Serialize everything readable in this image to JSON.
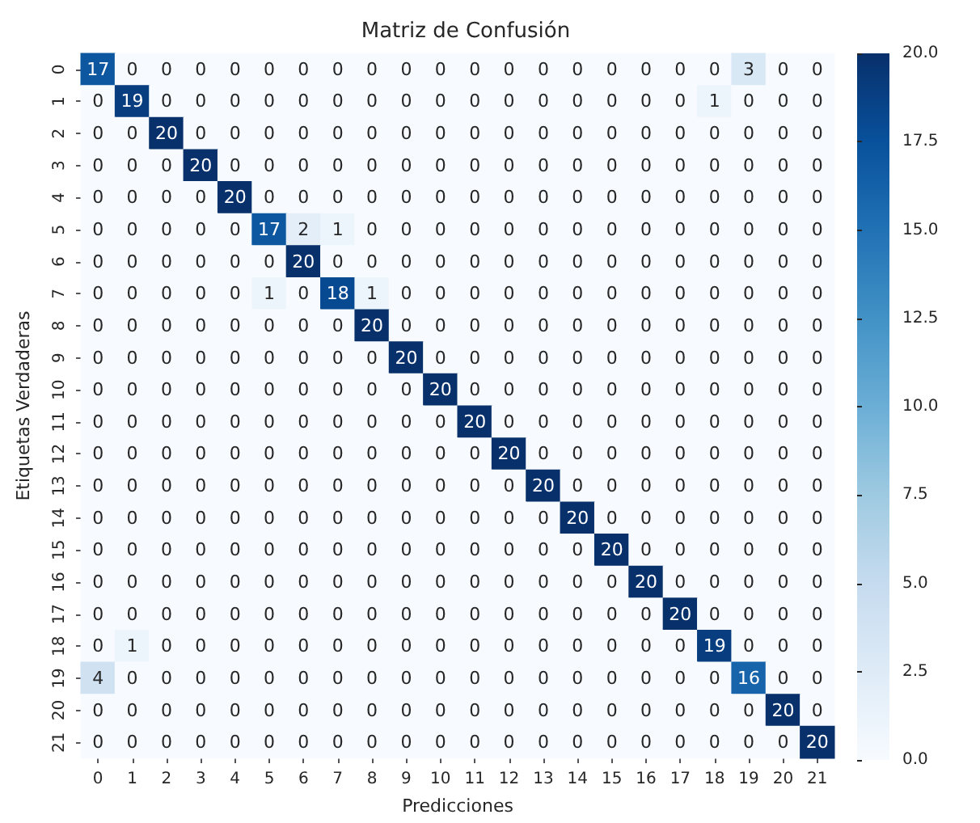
{
  "chart_data": {
    "type": "heatmap",
    "title": "Matriz de Confusión",
    "xlabel": "Predicciones",
    "ylabel": "Etiquetas Verdaderas",
    "categories": [
      "0",
      "1",
      "2",
      "3",
      "4",
      "5",
      "6",
      "7",
      "8",
      "9",
      "10",
      "11",
      "12",
      "13",
      "14",
      "15",
      "16",
      "17",
      "18",
      "19",
      "20",
      "21"
    ],
    "y_categories": [
      "0",
      "1",
      "2",
      "3",
      "4",
      "5",
      "6",
      "7",
      "8",
      "9",
      "10",
      "11",
      "12",
      "13",
      "14",
      "15",
      "16",
      "17",
      "18",
      "19",
      "20",
      "21"
    ],
    "cells": [
      [
        17,
        0,
        0,
        0,
        0,
        0,
        0,
        0,
        0,
        0,
        0,
        0,
        0,
        0,
        0,
        0,
        0,
        0,
        0,
        3,
        0,
        0
      ],
      [
        0,
        19,
        0,
        0,
        0,
        0,
        0,
        0,
        0,
        0,
        0,
        0,
        0,
        0,
        0,
        0,
        0,
        0,
        1,
        0,
        0,
        0
      ],
      [
        0,
        0,
        20,
        0,
        0,
        0,
        0,
        0,
        0,
        0,
        0,
        0,
        0,
        0,
        0,
        0,
        0,
        0,
        0,
        0,
        0,
        0
      ],
      [
        0,
        0,
        0,
        20,
        0,
        0,
        0,
        0,
        0,
        0,
        0,
        0,
        0,
        0,
        0,
        0,
        0,
        0,
        0,
        0,
        0,
        0
      ],
      [
        0,
        0,
        0,
        0,
        20,
        0,
        0,
        0,
        0,
        0,
        0,
        0,
        0,
        0,
        0,
        0,
        0,
        0,
        0,
        0,
        0,
        0
      ],
      [
        0,
        0,
        0,
        0,
        0,
        17,
        2,
        1,
        0,
        0,
        0,
        0,
        0,
        0,
        0,
        0,
        0,
        0,
        0,
        0,
        0,
        0
      ],
      [
        0,
        0,
        0,
        0,
        0,
        0,
        20,
        0,
        0,
        0,
        0,
        0,
        0,
        0,
        0,
        0,
        0,
        0,
        0,
        0,
        0,
        0
      ],
      [
        0,
        0,
        0,
        0,
        0,
        1,
        0,
        18,
        1,
        0,
        0,
        0,
        0,
        0,
        0,
        0,
        0,
        0,
        0,
        0,
        0,
        0
      ],
      [
        0,
        0,
        0,
        0,
        0,
        0,
        0,
        0,
        20,
        0,
        0,
        0,
        0,
        0,
        0,
        0,
        0,
        0,
        0,
        0,
        0,
        0
      ],
      [
        0,
        0,
        0,
        0,
        0,
        0,
        0,
        0,
        0,
        20,
        0,
        0,
        0,
        0,
        0,
        0,
        0,
        0,
        0,
        0,
        0,
        0
      ],
      [
        0,
        0,
        0,
        0,
        0,
        0,
        0,
        0,
        0,
        0,
        20,
        0,
        0,
        0,
        0,
        0,
        0,
        0,
        0,
        0,
        0,
        0
      ],
      [
        0,
        0,
        0,
        0,
        0,
        0,
        0,
        0,
        0,
        0,
        0,
        20,
        0,
        0,
        0,
        0,
        0,
        0,
        0,
        0,
        0,
        0
      ],
      [
        0,
        0,
        0,
        0,
        0,
        0,
        0,
        0,
        0,
        0,
        0,
        0,
        20,
        0,
        0,
        0,
        0,
        0,
        0,
        0,
        0,
        0
      ],
      [
        0,
        0,
        0,
        0,
        0,
        0,
        0,
        0,
        0,
        0,
        0,
        0,
        0,
        20,
        0,
        0,
        0,
        0,
        0,
        0,
        0,
        0
      ],
      [
        0,
        0,
        0,
        0,
        0,
        0,
        0,
        0,
        0,
        0,
        0,
        0,
        0,
        0,
        20,
        0,
        0,
        0,
        0,
        0,
        0,
        0
      ],
      [
        0,
        0,
        0,
        0,
        0,
        0,
        0,
        0,
        0,
        0,
        0,
        0,
        0,
        0,
        0,
        20,
        0,
        0,
        0,
        0,
        0,
        0
      ],
      [
        0,
        0,
        0,
        0,
        0,
        0,
        0,
        0,
        0,
        0,
        0,
        0,
        0,
        0,
        0,
        0,
        20,
        0,
        0,
        0,
        0,
        0
      ],
      [
        0,
        0,
        0,
        0,
        0,
        0,
        0,
        0,
        0,
        0,
        0,
        0,
        0,
        0,
        0,
        0,
        0,
        20,
        0,
        0,
        0,
        0
      ],
      [
        0,
        1,
        0,
        0,
        0,
        0,
        0,
        0,
        0,
        0,
        0,
        0,
        0,
        0,
        0,
        0,
        0,
        0,
        19,
        0,
        0,
        0
      ],
      [
        4,
        0,
        0,
        0,
        0,
        0,
        0,
        0,
        0,
        0,
        0,
        0,
        0,
        0,
        0,
        0,
        0,
        0,
        0,
        16,
        0,
        0
      ],
      [
        0,
        0,
        0,
        0,
        0,
        0,
        0,
        0,
        0,
        0,
        0,
        0,
        0,
        0,
        0,
        0,
        0,
        0,
        0,
        0,
        20,
        0
      ],
      [
        0,
        0,
        0,
        0,
        0,
        0,
        0,
        0,
        0,
        0,
        0,
        0,
        0,
        0,
        0,
        0,
        0,
        0,
        0,
        0,
        0,
        20
      ]
    ],
    "clim": [
      0,
      20
    ],
    "cticks": [
      {
        "value": 0,
        "label": "0.0"
      },
      {
        "value": 2.5,
        "label": "2.5"
      },
      {
        "value": 5,
        "label": "5.0"
      },
      {
        "value": 7.5,
        "label": "7.5"
      },
      {
        "value": 10,
        "label": "10.0"
      },
      {
        "value": 12.5,
        "label": "12.5"
      },
      {
        "value": 15,
        "label": "15.0"
      },
      {
        "value": 17.5,
        "label": "17.5"
      },
      {
        "value": 20,
        "label": "20.0"
      }
    ],
    "data_labels": true
  }
}
